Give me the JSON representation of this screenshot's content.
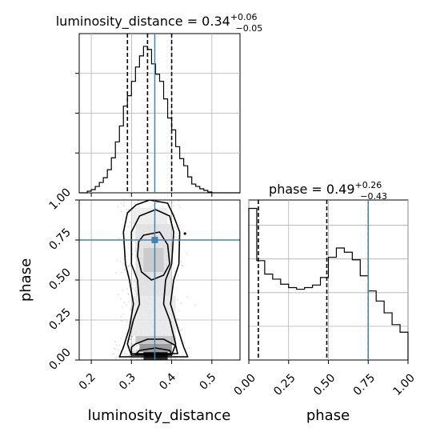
{
  "chart_data": [
    {
      "type": "histogram",
      "panel": "top-left",
      "title": {
        "prefix": "luminosity_distance = 0.34",
        "plus": "+0.06",
        "minus": "−0.05"
      },
      "xlim": [
        0.17,
        0.57
      ],
      "bins": [
        0.17,
        0.18,
        0.19,
        0.2,
        0.21,
        0.22,
        0.23,
        0.24,
        0.25,
        0.26,
        0.27,
        0.28,
        0.29,
        0.3,
        0.31,
        0.32,
        0.33,
        0.34,
        0.35,
        0.36,
        0.37,
        0.38,
        0.39,
        0.4,
        0.41,
        0.42,
        0.43,
        0.44,
        0.45,
        0.46,
        0.47,
        0.48,
        0.49,
        0.5,
        0.51,
        0.52,
        0.53,
        0.54,
        0.55,
        0.56,
        0.57
      ],
      "counts": [
        0,
        0,
        2,
        4,
        8,
        13,
        19,
        29,
        44,
        64,
        84,
        109,
        122,
        140,
        158,
        172,
        184,
        180,
        162,
        149,
        140,
        118,
        94,
        79,
        58,
        43,
        34,
        20,
        11,
        8,
        5,
        3,
        1,
        0,
        0,
        0,
        0,
        0,
        0,
        0
      ],
      "ylim": [
        0,
        200
      ],
      "quantiles": [
        0.29,
        0.34,
        0.4
      ],
      "truth": 0.358
    },
    {
      "type": "histogram",
      "panel": "bottom-right",
      "title": {
        "prefix": "phase = 0.49",
        "plus": "+0.26",
        "minus": "−0.43"
      },
      "xlim": [
        0.0,
        1.0
      ],
      "bins": [
        0.0,
        0.05,
        0.1,
        0.15,
        0.2,
        0.25,
        0.3,
        0.35,
        0.4,
        0.45,
        0.5,
        0.55,
        0.6,
        0.65,
        0.7,
        0.75,
        0.8,
        0.85,
        0.9,
        0.95,
        1.0
      ],
      "counts": [
        180,
        118,
        102,
        96,
        90,
        86,
        84,
        86,
        89,
        98,
        122,
        133,
        128,
        119,
        100,
        82,
        70,
        56,
        42,
        33
      ],
      "ylim": [
        0,
        190
      ],
      "quantiles": [
        0.06,
        0.49,
        0.75
      ],
      "truth": 0.75,
      "xticks": [
        0.0,
        0.25,
        0.5,
        0.75,
        1.0
      ],
      "xticklabels": [
        "0.00",
        "0.25",
        "0.50",
        "0.75",
        "1.00"
      ],
      "xlabel": "phase"
    },
    {
      "type": "scatter",
      "panel": "bottom-left",
      "kind": "2d-density-contour",
      "xlim": [
        0.17,
        0.57
      ],
      "ylim": [
        0.0,
        1.0
      ],
      "xticks": [
        0.2,
        0.3,
        0.4,
        0.5
      ],
      "xticklabels": [
        "0.2",
        "0.3",
        "0.4",
        "0.5"
      ],
      "yticks": [
        0.0,
        0.25,
        0.5,
        0.75,
        1.0
      ],
      "yticklabels": [
        "0.00",
        "0.25",
        "0.50",
        "0.75",
        "1.00"
      ],
      "xlabel": "luminosity_distance",
      "ylabel": "phase",
      "truth": {
        "x": 0.358,
        "y": 0.75
      },
      "contours": [
        [
          [
            0.312,
            0.97
          ],
          [
            0.345,
            1.0
          ],
          [
            0.39,
            0.98
          ],
          [
            0.405,
            0.9
          ],
          [
            0.42,
            0.8
          ],
          [
            0.418,
            0.6
          ],
          [
            0.405,
            0.5
          ],
          [
            0.397,
            0.35
          ],
          [
            0.415,
            0.2
          ],
          [
            0.43,
            0.08
          ],
          [
            0.44,
            0.02
          ],
          [
            0.27,
            0.02
          ],
          [
            0.28,
            0.08
          ],
          [
            0.295,
            0.2
          ],
          [
            0.305,
            0.35
          ],
          [
            0.295,
            0.5
          ],
          [
            0.285,
            0.6
          ],
          [
            0.28,
            0.8
          ],
          [
            0.29,
            0.92
          ]
        ],
        [
          [
            0.32,
            0.9
          ],
          [
            0.36,
            0.94
          ],
          [
            0.395,
            0.9
          ],
          [
            0.405,
            0.8
          ],
          [
            0.4,
            0.6
          ],
          [
            0.385,
            0.5
          ],
          [
            0.38,
            0.35
          ],
          [
            0.395,
            0.25
          ],
          [
            0.41,
            0.1
          ],
          [
            0.4,
            0.03
          ],
          [
            0.3,
            0.03
          ],
          [
            0.29,
            0.1
          ],
          [
            0.305,
            0.25
          ],
          [
            0.32,
            0.35
          ],
          [
            0.315,
            0.5
          ],
          [
            0.3,
            0.6
          ],
          [
            0.3,
            0.8
          ]
        ],
        [
          [
            0.33,
            0.78
          ],
          [
            0.37,
            0.8
          ],
          [
            0.39,
            0.72
          ],
          [
            0.395,
            0.6
          ],
          [
            0.38,
            0.53
          ],
          [
            0.35,
            0.5
          ],
          [
            0.325,
            0.55
          ],
          [
            0.315,
            0.65
          ],
          [
            0.318,
            0.74
          ]
        ],
        [
          [
            0.31,
            0.1
          ],
          [
            0.34,
            0.13
          ],
          [
            0.38,
            0.13
          ],
          [
            0.41,
            0.09
          ],
          [
            0.415,
            0.04
          ],
          [
            0.3,
            0.04
          ],
          [
            0.3,
            0.08
          ]
        ],
        [
          [
            0.32,
            0.06
          ],
          [
            0.36,
            0.075
          ],
          [
            0.395,
            0.06
          ],
          [
            0.4,
            0.035
          ],
          [
            0.31,
            0.035
          ]
        ]
      ],
      "density_cells": [
        {
          "x": 0.33,
          "y": 0.0,
          "w": 0.06,
          "h": 0.05,
          "d": 0.95
        },
        {
          "x": 0.32,
          "y": 0.05,
          "w": 0.08,
          "h": 0.05,
          "d": 0.45
        },
        {
          "x": 0.31,
          "y": 0.1,
          "w": 0.1,
          "h": 0.05,
          "d": 0.25
        },
        {
          "x": 0.33,
          "y": 0.55,
          "w": 0.05,
          "h": 0.15,
          "d": 0.22
        },
        {
          "x": 0.3,
          "y": 0.15,
          "w": 0.11,
          "h": 0.25,
          "d": 0.1
        },
        {
          "x": 0.31,
          "y": 0.4,
          "w": 0.09,
          "h": 0.45,
          "d": 0.13
        },
        {
          "x": 0.3,
          "y": 0.85,
          "w": 0.09,
          "h": 0.1,
          "d": 0.08
        }
      ]
    }
  ]
}
